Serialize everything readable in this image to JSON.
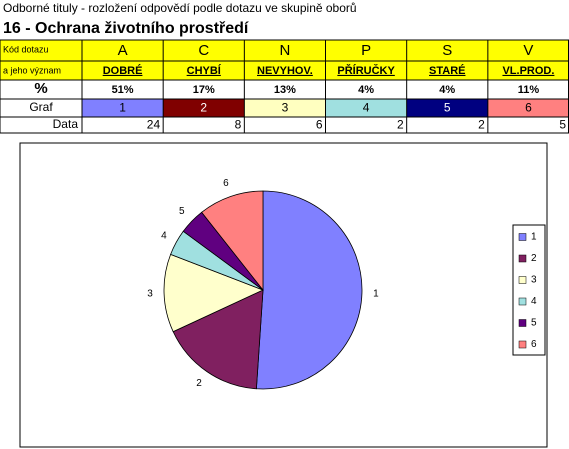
{
  "header": {
    "subtitle": "Odborné tituly - rozložení odpovědí podle dotazu ve skupině oborů",
    "title": "16 - Ochrana životního prostředí"
  },
  "table": {
    "row_labels": [
      "Kód dotazu",
      "a jeho význam",
      "%",
      "Graf",
      "Data"
    ],
    "codes": [
      "A",
      "C",
      "N",
      "P",
      "S",
      "V"
    ],
    "meanings": [
      "DOBRÉ",
      "CHYBÍ",
      "NEVYHOV.",
      "PŘÍRUČKY",
      "STARÉ",
      "VL.PROD."
    ],
    "percents": [
      "51%",
      "17%",
      "13%",
      "4%",
      "4%",
      "11%"
    ],
    "graf_colors": [
      "#8080ff",
      "#800000",
      "#ffffc0",
      "#a0e0e0",
      "#000080",
      "#ff8080"
    ]
  },
  "chart_data": {
    "type": "pie",
    "categories": [
      "1",
      "2",
      "3",
      "4",
      "5",
      "6"
    ],
    "values": [
      24,
      8,
      6,
      2,
      2,
      5
    ],
    "colors": [
      "#8080ff",
      "#802060",
      "#ffffcc",
      "#a0e0e0",
      "#600080",
      "#ff8080"
    ],
    "legend": "right"
  }
}
